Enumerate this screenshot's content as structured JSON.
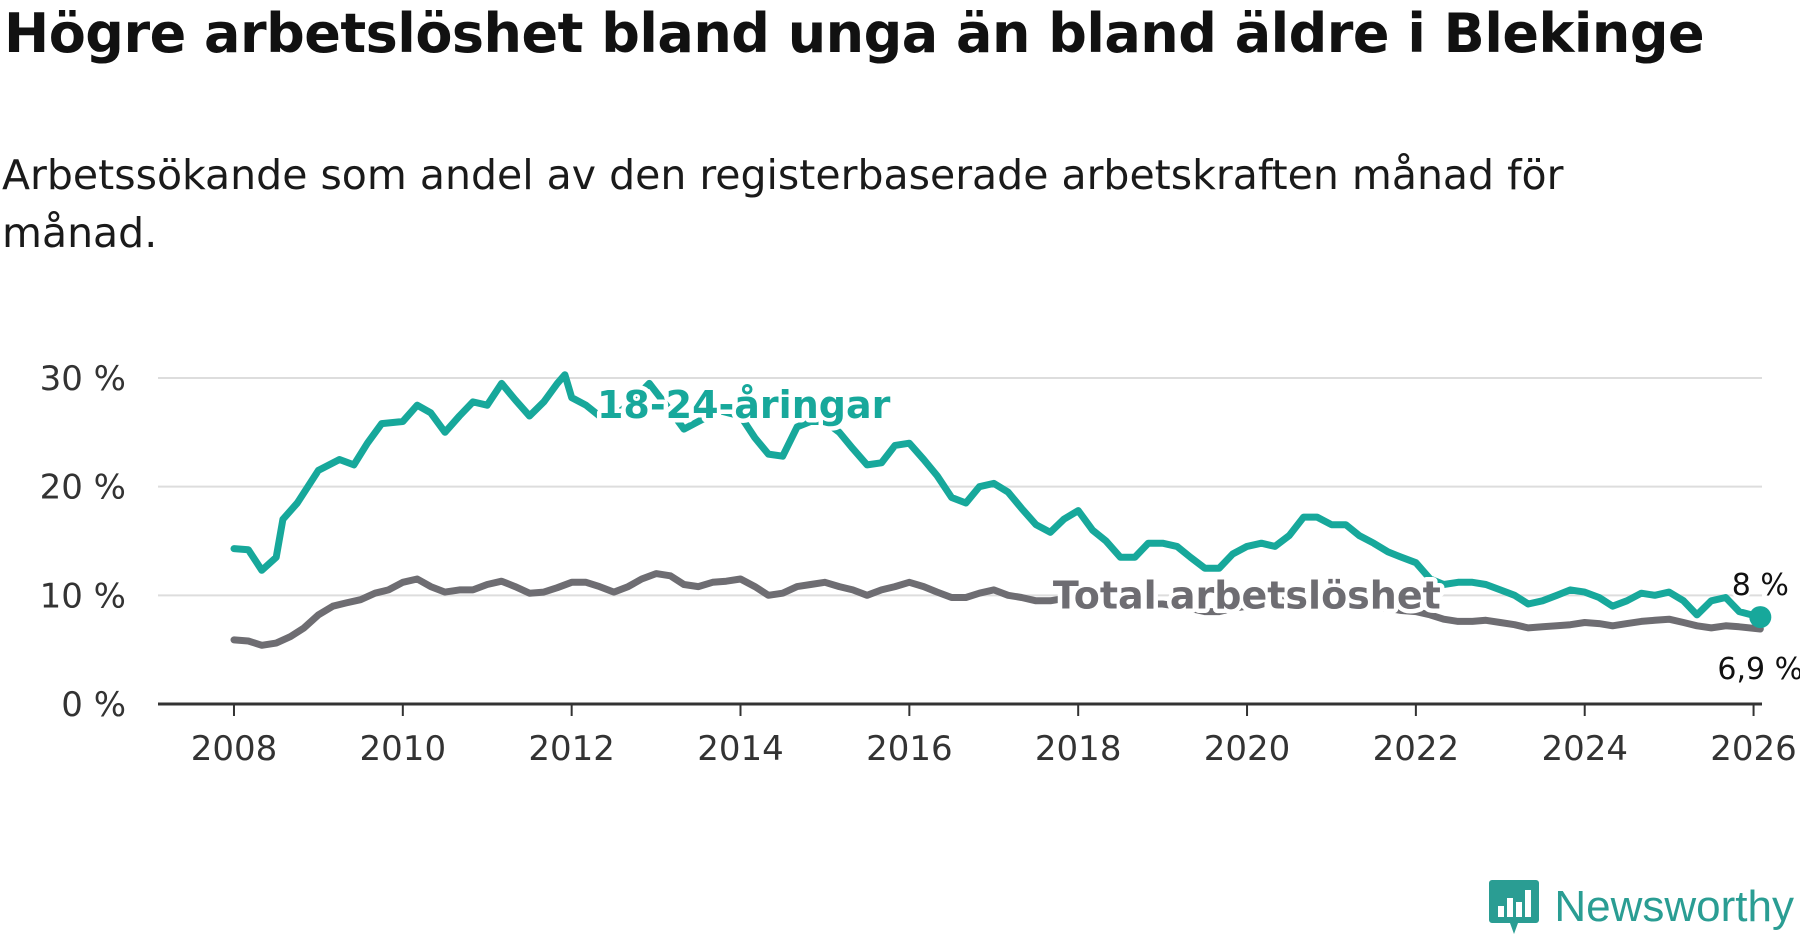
{
  "header": {
    "title": "Högre arbetslöshet bland unga än bland äldre i Blekinge",
    "subtitle": "Arbetssökande som andel av den registerbaserade arbetskraften månad för månad."
  },
  "brand": {
    "name": "Newsworthy",
    "icon": "newsworthy-logo-icon",
    "color": "#2a9d93"
  },
  "chart_data": {
    "type": "line",
    "title": "Högre arbetslöshet bland unga än bland äldre i Blekinge",
    "subtitle": "Arbetssökande som andel av den registerbaserade arbetskraften månad för månad.",
    "xlabel": "",
    "ylabel": "",
    "xlim": [
      2007.1,
      2026.1
    ],
    "ylim": [
      0,
      30
    ],
    "x_ticks": [
      2008,
      2010,
      2012,
      2014,
      2016,
      2018,
      2020,
      2022,
      2024,
      2026
    ],
    "x_tick_labels": [
      "2008",
      "2010",
      "2012",
      "2014",
      "2016",
      "2018",
      "2020",
      "2022",
      "2024",
      "2026"
    ],
    "y_ticks": [
      0,
      10,
      20,
      30
    ],
    "y_tick_labels": [
      "0 %",
      "10 %",
      "20 %",
      "30 %"
    ],
    "grid": true,
    "series": [
      {
        "name": "18-24-åringar",
        "color": "#17a89b",
        "end_label": "8 %",
        "points": [
          [
            2008.0,
            14.3
          ],
          [
            2008.17,
            14.2
          ],
          [
            2008.33,
            12.3
          ],
          [
            2008.5,
            13.5
          ],
          [
            2008.58,
            17.0
          ],
          [
            2008.75,
            18.5
          ],
          [
            2009.0,
            21.5
          ],
          [
            2009.25,
            22.5
          ],
          [
            2009.42,
            22.0
          ],
          [
            2009.58,
            24.0
          ],
          [
            2009.75,
            25.8
          ],
          [
            2010.0,
            26.0
          ],
          [
            2010.17,
            27.5
          ],
          [
            2010.33,
            26.8
          ],
          [
            2010.5,
            25.0
          ],
          [
            2010.67,
            26.5
          ],
          [
            2010.83,
            27.8
          ],
          [
            2011.0,
            27.5
          ],
          [
            2011.17,
            29.5
          ],
          [
            2011.33,
            28.0
          ],
          [
            2011.5,
            26.5
          ],
          [
            2011.67,
            27.8
          ],
          [
            2011.83,
            29.5
          ],
          [
            2011.92,
            30.3
          ],
          [
            2012.0,
            28.2
          ],
          [
            2012.17,
            27.5
          ],
          [
            2012.33,
            26.5
          ],
          [
            2012.5,
            26.5
          ],
          [
            2012.67,
            27.5
          ],
          [
            2012.92,
            29.5
          ],
          [
            2013.17,
            27.0
          ],
          [
            2013.33,
            25.3
          ],
          [
            2013.5,
            26.0
          ],
          [
            2013.75,
            27.0
          ],
          [
            2014.0,
            26.5
          ],
          [
            2014.17,
            24.5
          ],
          [
            2014.33,
            23.0
          ],
          [
            2014.5,
            22.8
          ],
          [
            2014.67,
            25.5
          ],
          [
            2014.83,
            26.0
          ],
          [
            2015.0,
            26.0
          ],
          [
            2015.17,
            25.0
          ],
          [
            2015.33,
            23.5
          ],
          [
            2015.5,
            22.0
          ],
          [
            2015.67,
            22.2
          ],
          [
            2015.83,
            23.8
          ],
          [
            2016.0,
            24.0
          ],
          [
            2016.17,
            22.5
          ],
          [
            2016.33,
            21.0
          ],
          [
            2016.5,
            19.0
          ],
          [
            2016.67,
            18.5
          ],
          [
            2016.83,
            20.0
          ],
          [
            2017.0,
            20.3
          ],
          [
            2017.17,
            19.5
          ],
          [
            2017.33,
            18.0
          ],
          [
            2017.5,
            16.5
          ],
          [
            2017.67,
            15.8
          ],
          [
            2017.83,
            17.0
          ],
          [
            2018.0,
            17.8
          ],
          [
            2018.17,
            16.0
          ],
          [
            2018.33,
            15.0
          ],
          [
            2018.5,
            13.5
          ],
          [
            2018.67,
            13.5
          ],
          [
            2018.83,
            14.8
          ],
          [
            2019.0,
            14.8
          ],
          [
            2019.17,
            14.5
          ],
          [
            2019.33,
            13.5
          ],
          [
            2019.5,
            12.5
          ],
          [
            2019.67,
            12.5
          ],
          [
            2019.83,
            13.8
          ],
          [
            2020.0,
            14.5
          ],
          [
            2020.17,
            14.8
          ],
          [
            2020.33,
            14.5
          ],
          [
            2020.5,
            15.5
          ],
          [
            2020.67,
            17.2
          ],
          [
            2020.83,
            17.2
          ],
          [
            2021.0,
            16.5
          ],
          [
            2021.17,
            16.5
          ],
          [
            2021.33,
            15.5
          ],
          [
            2021.5,
            14.8
          ],
          [
            2021.67,
            14.0
          ],
          [
            2021.83,
            13.5
          ],
          [
            2022.0,
            13.0
          ],
          [
            2022.17,
            11.5
          ],
          [
            2022.33,
            11.0
          ],
          [
            2022.5,
            11.2
          ],
          [
            2022.67,
            11.2
          ],
          [
            2022.83,
            11.0
          ],
          [
            2023.0,
            10.5
          ],
          [
            2023.17,
            10.0
          ],
          [
            2023.33,
            9.2
          ],
          [
            2023.5,
            9.5
          ],
          [
            2023.67,
            10.0
          ],
          [
            2023.83,
            10.5
          ],
          [
            2024.0,
            10.3
          ],
          [
            2024.17,
            9.8
          ],
          [
            2024.33,
            9.0
          ],
          [
            2024.5,
            9.5
          ],
          [
            2024.67,
            10.2
          ],
          [
            2024.83,
            10.0
          ],
          [
            2025.0,
            10.3
          ],
          [
            2025.17,
            9.5
          ],
          [
            2025.33,
            8.2
          ],
          [
            2025.5,
            9.5
          ],
          [
            2025.67,
            9.8
          ],
          [
            2025.83,
            8.5
          ],
          [
            2026.08,
            8.0
          ]
        ]
      },
      {
        "name": "Total arbetslöshet",
        "color": "#6e6d72",
        "end_label": "6,9 %",
        "points": [
          [
            2008.0,
            5.9
          ],
          [
            2008.17,
            5.8
          ],
          [
            2008.33,
            5.4
          ],
          [
            2008.5,
            5.6
          ],
          [
            2008.67,
            6.2
          ],
          [
            2008.83,
            7.0
          ],
          [
            2009.0,
            8.2
          ],
          [
            2009.17,
            9.0
          ],
          [
            2009.33,
            9.3
          ],
          [
            2009.5,
            9.6
          ],
          [
            2009.67,
            10.2
          ],
          [
            2009.83,
            10.5
          ],
          [
            2010.0,
            11.2
          ],
          [
            2010.17,
            11.5
          ],
          [
            2010.33,
            10.8
          ],
          [
            2010.5,
            10.3
          ],
          [
            2010.67,
            10.5
          ],
          [
            2010.83,
            10.5
          ],
          [
            2011.0,
            11.0
          ],
          [
            2011.17,
            11.3
          ],
          [
            2011.33,
            10.8
          ],
          [
            2011.5,
            10.2
          ],
          [
            2011.67,
            10.3
          ],
          [
            2011.83,
            10.7
          ],
          [
            2012.0,
            11.2
          ],
          [
            2012.17,
            11.2
          ],
          [
            2012.33,
            10.8
          ],
          [
            2012.5,
            10.3
          ],
          [
            2012.67,
            10.8
          ],
          [
            2012.83,
            11.5
          ],
          [
            2013.0,
            12.0
          ],
          [
            2013.17,
            11.8
          ],
          [
            2013.33,
            11.0
          ],
          [
            2013.5,
            10.8
          ],
          [
            2013.67,
            11.2
          ],
          [
            2013.83,
            11.3
          ],
          [
            2014.0,
            11.5
          ],
          [
            2014.17,
            10.8
          ],
          [
            2014.33,
            10.0
          ],
          [
            2014.5,
            10.2
          ],
          [
            2014.67,
            10.8
          ],
          [
            2014.83,
            11.0
          ],
          [
            2015.0,
            11.2
          ],
          [
            2015.17,
            10.8
          ],
          [
            2015.33,
            10.5
          ],
          [
            2015.5,
            10.0
          ],
          [
            2015.67,
            10.5
          ],
          [
            2015.83,
            10.8
          ],
          [
            2016.0,
            11.2
          ],
          [
            2016.17,
            10.8
          ],
          [
            2016.33,
            10.3
          ],
          [
            2016.5,
            9.8
          ],
          [
            2016.67,
            9.8
          ],
          [
            2016.83,
            10.2
          ],
          [
            2017.0,
            10.5
          ],
          [
            2017.17,
            10.0
          ],
          [
            2017.33,
            9.8
          ],
          [
            2017.5,
            9.5
          ],
          [
            2017.67,
            9.5
          ],
          [
            2017.83,
            9.7
          ],
          [
            2018.0,
            9.5
          ],
          [
            2018.17,
            9.3
          ],
          [
            2018.33,
            9.2
          ],
          [
            2018.5,
            9.0
          ],
          [
            2018.67,
            9.0
          ],
          [
            2018.83,
            9.2
          ],
          [
            2019.0,
            9.2
          ],
          [
            2019.17,
            9.0
          ],
          [
            2019.33,
            8.8
          ],
          [
            2019.5,
            8.5
          ],
          [
            2019.67,
            8.5
          ],
          [
            2019.83,
            8.8
          ],
          [
            2020.0,
            9.0
          ],
          [
            2020.17,
            9.3
          ],
          [
            2020.33,
            9.5
          ],
          [
            2020.5,
            10.0
          ],
          [
            2020.67,
            10.3
          ],
          [
            2020.83,
            10.0
          ],
          [
            2021.0,
            9.8
          ],
          [
            2021.17,
            9.5
          ],
          [
            2021.33,
            9.2
          ],
          [
            2021.5,
            9.0
          ],
          [
            2021.67,
            8.8
          ],
          [
            2021.83,
            8.6
          ],
          [
            2022.0,
            8.5
          ],
          [
            2022.17,
            8.2
          ],
          [
            2022.33,
            7.8
          ],
          [
            2022.5,
            7.6
          ],
          [
            2022.67,
            7.6
          ],
          [
            2022.83,
            7.7
          ],
          [
            2023.0,
            7.5
          ],
          [
            2023.17,
            7.3
          ],
          [
            2023.33,
            7.0
          ],
          [
            2023.5,
            7.1
          ],
          [
            2023.67,
            7.2
          ],
          [
            2023.83,
            7.3
          ],
          [
            2024.0,
            7.5
          ],
          [
            2024.17,
            7.4
          ],
          [
            2024.33,
            7.2
          ],
          [
            2024.5,
            7.4
          ],
          [
            2024.67,
            7.6
          ],
          [
            2024.83,
            7.7
          ],
          [
            2025.0,
            7.8
          ],
          [
            2025.17,
            7.5
          ],
          [
            2025.33,
            7.2
          ],
          [
            2025.5,
            7.0
          ],
          [
            2025.67,
            7.2
          ],
          [
            2025.83,
            7.1
          ],
          [
            2026.08,
            6.9
          ]
        ]
      }
    ],
    "annotations": [
      {
        "text": "18-24-åringar",
        "series": "18-24-åringar",
        "x": 2012.3,
        "y": 27.5
      },
      {
        "text": "Total arbetslöshet",
        "series": "Total arbetslöshet",
        "x": 2017.7,
        "y": 10.0
      }
    ]
  }
}
